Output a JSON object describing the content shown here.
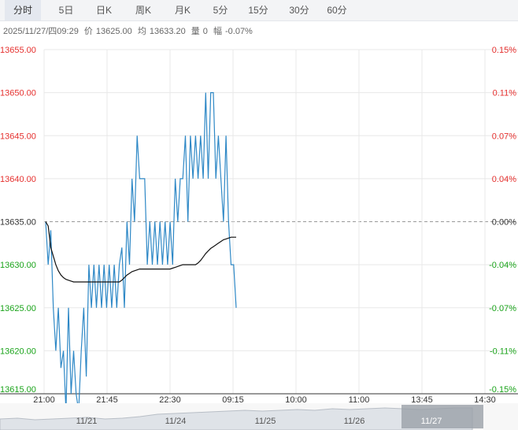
{
  "tabs": [
    {
      "label": "分时",
      "active": true
    },
    {
      "label": "5日",
      "active": false
    },
    {
      "label": "日K",
      "active": false
    },
    {
      "label": "周K",
      "active": false
    },
    {
      "label": "月K",
      "active": false
    },
    {
      "label": "5分",
      "active": false
    },
    {
      "label": "15分",
      "active": false
    },
    {
      "label": "30分",
      "active": false
    },
    {
      "label": "60分",
      "active": false
    }
  ],
  "info": {
    "datetime": "2025/11/27/四09:29",
    "price_label": "价",
    "price": "13625.00",
    "avg_label": "均",
    "avg": "13633.20",
    "vol_label": "量",
    "vol": "0",
    "change_label": "幅",
    "change": "-0.07%"
  },
  "colors": {
    "price_line": "#2e88c6",
    "avg_line": "#111111",
    "up": "#e5302e",
    "down": "#1aa31a",
    "neutral": "#333333",
    "grid": "#e8e8e8",
    "base_line": "#999999"
  },
  "chart_data": {
    "type": "line",
    "x_ticks": [
      "21:00",
      "21:45",
      "22:30",
      "09:15",
      "10:00",
      "11:00",
      "13:45",
      "14:30"
    ],
    "y_ticks": [
      13655.0,
      13650.0,
      13645.0,
      13640.0,
      13635.0,
      13630.0,
      13625.0,
      13620.0,
      13615.0
    ],
    "y_tick_labels": [
      "13655.00",
      "13650.00",
      "13645.00",
      "13640.00",
      "13635.00",
      "13630.00",
      "13625.00",
      "13620.00",
      "13615.00"
    ],
    "pct_ticks": [
      "0.15%",
      "0.11%",
      "0.07%",
      "0.04%",
      "0.00%",
      "-0.04%",
      "-0.07%",
      "-0.11%",
      "-0.15%"
    ],
    "ylim": [
      13615,
      13655
    ],
    "base_price": 13635,
    "series": [
      {
        "role": "price",
        "values": [
          13635,
          13630,
          13634,
          13625,
          13620,
          13625,
          13618,
          13620,
          13613,
          13625,
          13615,
          13620,
          13615,
          13613,
          13620,
          13625,
          13617,
          13630,
          13625,
          13630,
          13625,
          13630,
          13625,
          13630,
          13625,
          13630,
          13625,
          13630,
          13625,
          13630,
          13632,
          13625,
          13635,
          13630,
          13640,
          13635,
          13645,
          13640,
          13640,
          13640,
          13630,
          13635,
          13630,
          13635,
          13630,
          13635,
          13630,
          13635,
          13630,
          13635,
          13630,
          13640,
          13635,
          13640,
          13640,
          13645,
          13635,
          13645,
          13640,
          13645,
          13640,
          13645,
          13640,
          13650,
          13640,
          13650,
          13650,
          13640,
          13645,
          13640,
          13635,
          13645,
          13635,
          13630,
          13630,
          13625
        ]
      },
      {
        "role": "average",
        "values": [
          13635,
          13634.5,
          13632,
          13631,
          13630,
          13629.3,
          13628.8,
          13628.5,
          13628.3,
          13628.2,
          13628.1,
          13628,
          13628,
          13628,
          13628,
          13628,
          13628,
          13628,
          13628,
          13628,
          13628,
          13628,
          13628,
          13628,
          13628,
          13628,
          13628,
          13628,
          13628,
          13628,
          13628.2,
          13628.5,
          13628.8,
          13629,
          13629.2,
          13629.3,
          13629.4,
          13629.5,
          13629.5,
          13629.5,
          13629.5,
          13629.5,
          13629.5,
          13629.5,
          13629.5,
          13629.5,
          13629.5,
          13629.5,
          13629.5,
          13629.5,
          13629.6,
          13629.7,
          13629.8,
          13629.9,
          13630,
          13630,
          13630,
          13630,
          13630,
          13630,
          13630.2,
          13630.5,
          13630.9,
          13631.3,
          13631.6,
          13631.9,
          13632.1,
          13632.3,
          13632.5,
          13632.7,
          13632.9,
          13633,
          13633.1,
          13633.2,
          13633.2,
          13633.2
        ]
      }
    ],
    "navigator": {
      "dates": [
        "11/21",
        "11/24",
        "11/25",
        "11/26",
        "11/27"
      ],
      "selected_date": "11/27"
    }
  }
}
